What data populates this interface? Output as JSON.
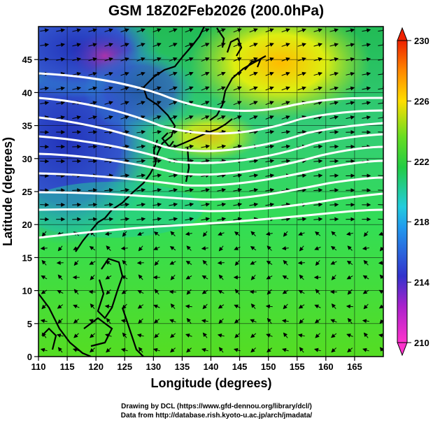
{
  "title": "GSM 18Z02Feb2026 (200.0hPa)",
  "x_axis": {
    "label": "Longitude (degrees)",
    "ticks": [
      "110",
      "115",
      "120",
      "125",
      "130",
      "135",
      "140",
      "145",
      "150",
      "155",
      "160",
      "165"
    ]
  },
  "y_axis": {
    "label": "Latitude  (degrees)",
    "ticks": [
      "0",
      "5",
      "10",
      "15",
      "20",
      "25",
      "30",
      "35",
      "40",
      "45"
    ]
  },
  "colorbar": {
    "ticks": [
      "210",
      "214",
      "218",
      "222",
      "226",
      "230"
    ],
    "min": 210,
    "max": 230
  },
  "credits": {
    "line1": "Drawing by DCL (https://www.gfd-dennou.org/library/dcl/)",
    "line2": "Data from http://database.rish.kyoto-u.ac.jp/arch/jmadata/"
  },
  "map": {
    "lon_range": [
      110,
      170
    ],
    "lat_range": [
      0,
      50
    ],
    "field": "temperature shading with wind vectors and geopotential contours",
    "colors": {
      "low": "#ff33cc",
      "cold": "#3333cc",
      "cyan": "#22ccdd",
      "green": "#33dd22",
      "yellow": "#ffee00",
      "high": "#ee2200"
    }
  }
}
